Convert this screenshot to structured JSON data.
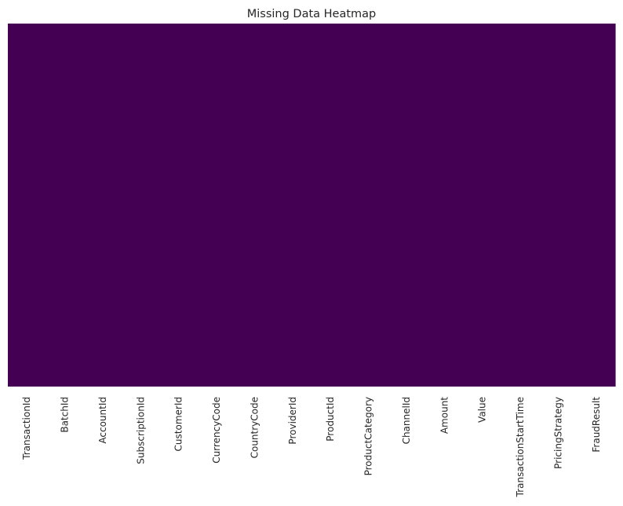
{
  "chart_data": {
    "type": "heatmap",
    "title": "Missing Data Heatmap",
    "xlabel": "",
    "ylabel": "",
    "columns": [
      "TransactionId",
      "BatchId",
      "AccountId",
      "SubscriptionId",
      "CustomerId",
      "CurrencyCode",
      "CountryCode",
      "ProviderId",
      "ProductId",
      "ProductCategory",
      "ChannelId",
      "Amount",
      "Value",
      "TransactionStartTime",
      "PricingStrategy",
      "FraudResult"
    ],
    "missing": [
      false,
      false,
      false,
      false,
      false,
      false,
      false,
      false,
      false,
      false,
      false,
      false,
      false,
      false,
      false,
      false
    ],
    "y_ticks_shown": false,
    "colorbar": false,
    "colors": {
      "present": "#440154",
      "missing": "#fde725",
      "text": "#262626",
      "background": "#ffffff"
    }
  }
}
